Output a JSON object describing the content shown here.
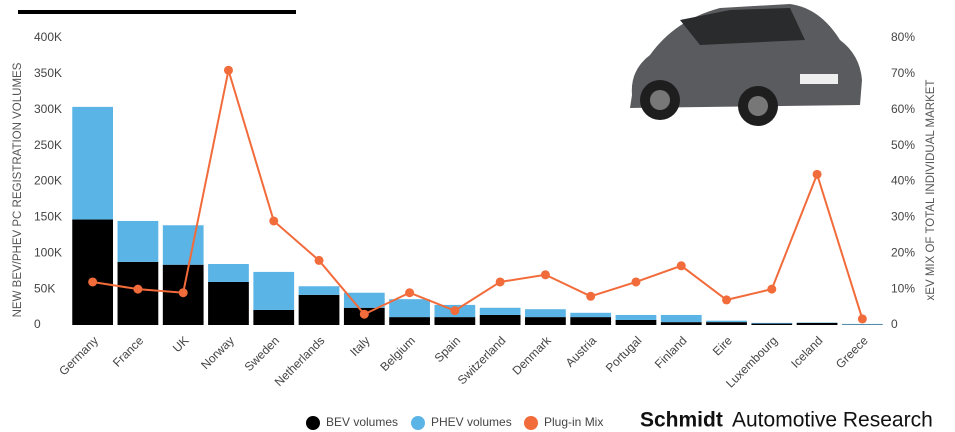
{
  "chart_data": {
    "type": "bar",
    "categories": [
      "Germany",
      "France",
      "UK",
      "Norway",
      "Sweden",
      "Netherlands",
      "Italy",
      "Belgium",
      "Spain",
      "Switzerland",
      "Denmark",
      "Austria",
      "Portugal",
      "Finland",
      "Eire",
      "Luxembourg",
      "Iceland",
      "Greece"
    ],
    "series": [
      {
        "name": "BEV volumes",
        "color": "#000000",
        "type": "bar",
        "values": [
          147000,
          88000,
          84000,
          60000,
          21000,
          42000,
          24000,
          11000,
          11000,
          14000,
          11000,
          11000,
          7000,
          4000,
          4000,
          2000,
          3000,
          500
        ]
      },
      {
        "name": "PHEV volumes",
        "color": "#5ab4e5",
        "type": "bar",
        "values": [
          157000,
          57000,
          55000,
          25000,
          53000,
          12000,
          21000,
          25000,
          17000,
          10000,
          11000,
          6000,
          7000,
          10000,
          2000,
          1000,
          500,
          1000
        ]
      },
      {
        "name": "Plug-in Mix",
        "color": "#f26b3a",
        "type": "line",
        "axis": "y2",
        "values": [
          12,
          10,
          9,
          71,
          29,
          18,
          3,
          9,
          4,
          12,
          14,
          8,
          12,
          16.5,
          7,
          10,
          42,
          1.7
        ]
      }
    ],
    "ylabel": "NEW BEV/PHEV PC REGISTRATION VOLUMES",
    "y2label": "xEV MIX OF TOTAL INDIVIDUAL MARKET",
    "ylim": [
      0,
      400000
    ],
    "yticks": [
      {
        "value": 0,
        "label": "0"
      },
      {
        "value": 50000,
        "label": "50K"
      },
      {
        "value": 100000,
        "label": "100K"
      },
      {
        "value": 150000,
        "label": "150K"
      },
      {
        "value": 200000,
        "label": "200K"
      },
      {
        "value": 250000,
        "label": "250K"
      },
      {
        "value": 300000,
        "label": "300K"
      },
      {
        "value": 350000,
        "label": "350K"
      },
      {
        "value": 400000,
        "label": "400K"
      }
    ],
    "y2lim": [
      0,
      80
    ],
    "y2ticks": [
      {
        "value": 0,
        "label": "0"
      },
      {
        "value": 10,
        "label": "10%"
      },
      {
        "value": 20,
        "label": "20%"
      },
      {
        "value": 30,
        "label": "30%"
      },
      {
        "value": 40,
        "label": "40%"
      },
      {
        "value": 50,
        "label": "50%"
      },
      {
        "value": 60,
        "label": "60%"
      },
      {
        "value": 70,
        "label": "70%"
      },
      {
        "value": 80,
        "label": "80%"
      }
    ],
    "grid": false,
    "legend": "bottom",
    "brand": {
      "name": "Schmidt",
      "tagline": "Automotive Research"
    }
  }
}
